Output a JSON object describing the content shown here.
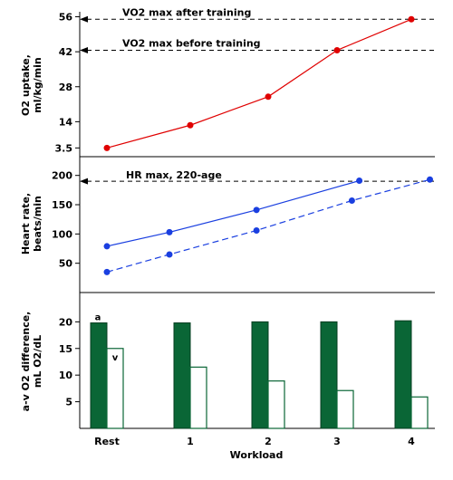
{
  "colors": {
    "o2_line": "#e00000",
    "hr_line": "#1a3fe0",
    "bar_a_fill": "#0a6636",
    "bar_v_fill": "#ffffff",
    "bar_v_stroke": "#0a6636"
  },
  "chart_data": [
    {
      "type": "line",
      "ylabel_lines": [
        "O2 uptake,",
        "ml/kg/min"
      ],
      "ylim": [
        0,
        58
      ],
      "yticks": [
        3.5,
        14,
        28,
        42,
        56
      ],
      "ytick_labels": [
        "3.5",
        "14",
        "28",
        "42",
        "56"
      ],
      "series": [
        {
          "x": [
            0,
            1,
            2,
            3,
            4
          ],
          "values": [
            3.5,
            12.6,
            24,
            42.6,
            55
          ]
        }
      ],
      "reference_lines": [
        {
          "label": "VO2 max after training",
          "value": 55
        },
        {
          "label": "VO2 max before training",
          "value": 42.6
        }
      ]
    },
    {
      "type": "line",
      "ylabel_lines": [
        "Heart rate,",
        "beats/min"
      ],
      "ylim": [
        0,
        232
      ],
      "yticks": [
        50,
        100,
        150,
        200
      ],
      "ytick_labels": [
        "50",
        "100",
        "150",
        "200"
      ],
      "series": [
        {
          "style": "solid",
          "x": [
            0,
            0.75,
            1.85,
            3.3
          ],
          "values": [
            79,
            103,
            141,
            191
          ]
        },
        {
          "style": "dashed",
          "x": [
            0,
            0.75,
            1.85,
            3.2,
            4.25
          ],
          "values": [
            35,
            65,
            106,
            157,
            193
          ]
        }
      ],
      "reference_lines": [
        {
          "label": "HR max, 220-age",
          "value": 190
        }
      ]
    },
    {
      "type": "bar",
      "xlabel": "Workload",
      "ylabel_lines": [
        "a-v O2 difference,",
        "mL O2/dL"
      ],
      "categories": [
        "Rest",
        "1",
        "2",
        "3",
        "4"
      ],
      "ylim": [
        0,
        25.5
      ],
      "yticks": [
        5,
        10,
        15,
        20
      ],
      "ytick_labels": [
        "5",
        "10",
        "15",
        "20"
      ],
      "series": [
        {
          "name": "a",
          "values": [
            19.8,
            19.8,
            20,
            20,
            20.2
          ]
        },
        {
          "name": "v",
          "values": [
            15,
            11.5,
            8.9,
            7.1,
            5.9
          ]
        }
      ]
    }
  ]
}
